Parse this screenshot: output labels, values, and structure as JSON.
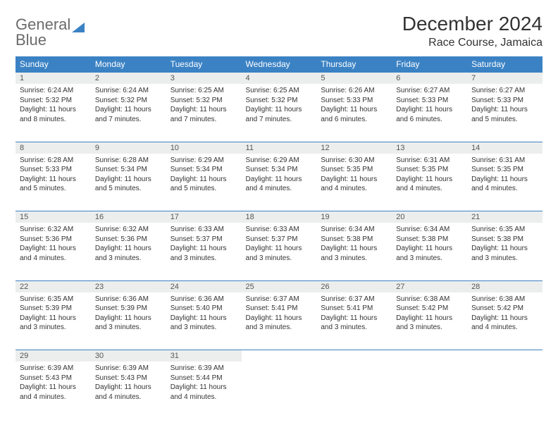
{
  "logo": {
    "line1": "General",
    "line2": "Blue"
  },
  "title": {
    "month": "December 2024",
    "location": "Race Course, Jamaica"
  },
  "colors": {
    "header_bg": "#3b82c4",
    "header_fg": "#ffffff",
    "daynum_bg": "#eceeee",
    "rule": "#3b82c4",
    "text": "#333333",
    "logo_gray": "#6b6b6b",
    "logo_blue": "#3b82c4",
    "page_bg": "#ffffff"
  },
  "typography": {
    "title_fontsize": 28,
    "location_fontsize": 16,
    "weekday_fontsize": 12,
    "daynum_fontsize": 11,
    "cell_fontsize": 10
  },
  "weekdays": [
    "Sunday",
    "Monday",
    "Tuesday",
    "Wednesday",
    "Thursday",
    "Friday",
    "Saturday"
  ],
  "weeks": [
    {
      "days": [
        {
          "num": "1",
          "sunrise": "Sunrise: 6:24 AM",
          "sunset": "Sunset: 5:32 PM",
          "daylight": "Daylight: 11 hours and 8 minutes."
        },
        {
          "num": "2",
          "sunrise": "Sunrise: 6:24 AM",
          "sunset": "Sunset: 5:32 PM",
          "daylight": "Daylight: 11 hours and 7 minutes."
        },
        {
          "num": "3",
          "sunrise": "Sunrise: 6:25 AM",
          "sunset": "Sunset: 5:32 PM",
          "daylight": "Daylight: 11 hours and 7 minutes."
        },
        {
          "num": "4",
          "sunrise": "Sunrise: 6:25 AM",
          "sunset": "Sunset: 5:32 PM",
          "daylight": "Daylight: 11 hours and 7 minutes."
        },
        {
          "num": "5",
          "sunrise": "Sunrise: 6:26 AM",
          "sunset": "Sunset: 5:33 PM",
          "daylight": "Daylight: 11 hours and 6 minutes."
        },
        {
          "num": "6",
          "sunrise": "Sunrise: 6:27 AM",
          "sunset": "Sunset: 5:33 PM",
          "daylight": "Daylight: 11 hours and 6 minutes."
        },
        {
          "num": "7",
          "sunrise": "Sunrise: 6:27 AM",
          "sunset": "Sunset: 5:33 PM",
          "daylight": "Daylight: 11 hours and 5 minutes."
        }
      ]
    },
    {
      "days": [
        {
          "num": "8",
          "sunrise": "Sunrise: 6:28 AM",
          "sunset": "Sunset: 5:33 PM",
          "daylight": "Daylight: 11 hours and 5 minutes."
        },
        {
          "num": "9",
          "sunrise": "Sunrise: 6:28 AM",
          "sunset": "Sunset: 5:34 PM",
          "daylight": "Daylight: 11 hours and 5 minutes."
        },
        {
          "num": "10",
          "sunrise": "Sunrise: 6:29 AM",
          "sunset": "Sunset: 5:34 PM",
          "daylight": "Daylight: 11 hours and 5 minutes."
        },
        {
          "num": "11",
          "sunrise": "Sunrise: 6:29 AM",
          "sunset": "Sunset: 5:34 PM",
          "daylight": "Daylight: 11 hours and 4 minutes."
        },
        {
          "num": "12",
          "sunrise": "Sunrise: 6:30 AM",
          "sunset": "Sunset: 5:35 PM",
          "daylight": "Daylight: 11 hours and 4 minutes."
        },
        {
          "num": "13",
          "sunrise": "Sunrise: 6:31 AM",
          "sunset": "Sunset: 5:35 PM",
          "daylight": "Daylight: 11 hours and 4 minutes."
        },
        {
          "num": "14",
          "sunrise": "Sunrise: 6:31 AM",
          "sunset": "Sunset: 5:35 PM",
          "daylight": "Daylight: 11 hours and 4 minutes."
        }
      ]
    },
    {
      "days": [
        {
          "num": "15",
          "sunrise": "Sunrise: 6:32 AM",
          "sunset": "Sunset: 5:36 PM",
          "daylight": "Daylight: 11 hours and 4 minutes."
        },
        {
          "num": "16",
          "sunrise": "Sunrise: 6:32 AM",
          "sunset": "Sunset: 5:36 PM",
          "daylight": "Daylight: 11 hours and 3 minutes."
        },
        {
          "num": "17",
          "sunrise": "Sunrise: 6:33 AM",
          "sunset": "Sunset: 5:37 PM",
          "daylight": "Daylight: 11 hours and 3 minutes."
        },
        {
          "num": "18",
          "sunrise": "Sunrise: 6:33 AM",
          "sunset": "Sunset: 5:37 PM",
          "daylight": "Daylight: 11 hours and 3 minutes."
        },
        {
          "num": "19",
          "sunrise": "Sunrise: 6:34 AM",
          "sunset": "Sunset: 5:38 PM",
          "daylight": "Daylight: 11 hours and 3 minutes."
        },
        {
          "num": "20",
          "sunrise": "Sunrise: 6:34 AM",
          "sunset": "Sunset: 5:38 PM",
          "daylight": "Daylight: 11 hours and 3 minutes."
        },
        {
          "num": "21",
          "sunrise": "Sunrise: 6:35 AM",
          "sunset": "Sunset: 5:38 PM",
          "daylight": "Daylight: 11 hours and 3 minutes."
        }
      ]
    },
    {
      "days": [
        {
          "num": "22",
          "sunrise": "Sunrise: 6:35 AM",
          "sunset": "Sunset: 5:39 PM",
          "daylight": "Daylight: 11 hours and 3 minutes."
        },
        {
          "num": "23",
          "sunrise": "Sunrise: 6:36 AM",
          "sunset": "Sunset: 5:39 PM",
          "daylight": "Daylight: 11 hours and 3 minutes."
        },
        {
          "num": "24",
          "sunrise": "Sunrise: 6:36 AM",
          "sunset": "Sunset: 5:40 PM",
          "daylight": "Daylight: 11 hours and 3 minutes."
        },
        {
          "num": "25",
          "sunrise": "Sunrise: 6:37 AM",
          "sunset": "Sunset: 5:41 PM",
          "daylight": "Daylight: 11 hours and 3 minutes."
        },
        {
          "num": "26",
          "sunrise": "Sunrise: 6:37 AM",
          "sunset": "Sunset: 5:41 PM",
          "daylight": "Daylight: 11 hours and 3 minutes."
        },
        {
          "num": "27",
          "sunrise": "Sunrise: 6:38 AM",
          "sunset": "Sunset: 5:42 PM",
          "daylight": "Daylight: 11 hours and 3 minutes."
        },
        {
          "num": "28",
          "sunrise": "Sunrise: 6:38 AM",
          "sunset": "Sunset: 5:42 PM",
          "daylight": "Daylight: 11 hours and 4 minutes."
        }
      ]
    },
    {
      "days": [
        {
          "num": "29",
          "sunrise": "Sunrise: 6:39 AM",
          "sunset": "Sunset: 5:43 PM",
          "daylight": "Daylight: 11 hours and 4 minutes."
        },
        {
          "num": "30",
          "sunrise": "Sunrise: 6:39 AM",
          "sunset": "Sunset: 5:43 PM",
          "daylight": "Daylight: 11 hours and 4 minutes."
        },
        {
          "num": "31",
          "sunrise": "Sunrise: 6:39 AM",
          "sunset": "Sunset: 5:44 PM",
          "daylight": "Daylight: 11 hours and 4 minutes."
        },
        {
          "empty": true
        },
        {
          "empty": true
        },
        {
          "empty": true
        },
        {
          "empty": true
        }
      ]
    }
  ]
}
